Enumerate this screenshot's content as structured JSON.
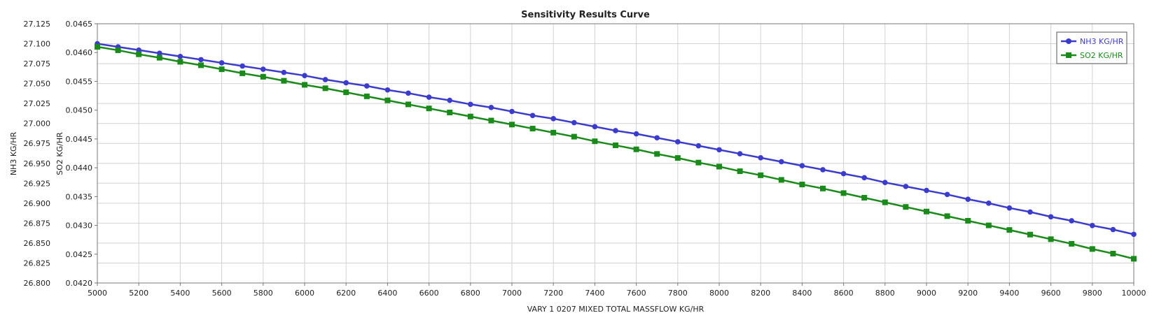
{
  "chart_data": {
    "type": "line",
    "title": "Sensitivity Results Curve",
    "xlabel": "VARY   1 0207 MIXED TOTAL MASSFLOW KG/HR",
    "xlim": [
      5000,
      10000
    ],
    "xticks": [
      5000,
      5200,
      5400,
      5600,
      5800,
      6000,
      6200,
      6400,
      6600,
      6800,
      7000,
      7200,
      7400,
      7600,
      7800,
      8000,
      8200,
      8400,
      8600,
      8800,
      9000,
      9200,
      9400,
      9600,
      9800,
      10000
    ],
    "x": [
      5000,
      5100,
      5200,
      5300,
      5400,
      5500,
      5600,
      5700,
      5800,
      5900,
      6000,
      6100,
      6200,
      6300,
      6400,
      6500,
      6600,
      6700,
      6800,
      6900,
      7000,
      7100,
      7200,
      7300,
      7400,
      7500,
      7600,
      7700,
      7800,
      7900,
      8000,
      8100,
      8200,
      8300,
      8400,
      8500,
      8600,
      8700,
      8800,
      8900,
      9000,
      9100,
      9200,
      9300,
      9400,
      9500,
      9600,
      9700,
      9800,
      9900,
      10000
    ],
    "grid": true,
    "legend_position": "top-right",
    "y_axes": [
      {
        "label": "NH3 KG/HR",
        "ylim": [
          26.8,
          27.125
        ],
        "ticks": [
          "27.125",
          "27.100",
          "27.075",
          "27.050",
          "27.025",
          "27.000",
          "26.975",
          "26.950",
          "26.925",
          "26.900",
          "26.875",
          "26.850",
          "26.825",
          "26.800"
        ]
      },
      {
        "label": "SO2 KG/HR",
        "ylim": [
          0.042,
          0.0465
        ],
        "ticks": [
          "0.0465",
          "0.0460",
          "0.0455",
          "0.0450",
          "0.0445",
          "0.0440",
          "0.0435",
          "0.0430",
          "0.0425",
          "0.0420"
        ]
      }
    ],
    "series": [
      {
        "name": "NH3 KG/HR",
        "axis": 0,
        "color": "#3c3ccc",
        "marker": "circle",
        "values": [
          27.1,
          27.096,
          27.092,
          27.088,
          27.084,
          27.08,
          27.076,
          27.072,
          27.068,
          27.064,
          27.06,
          27.055,
          27.051,
          27.047,
          27.042,
          27.038,
          27.033,
          27.029,
          27.024,
          27.02,
          27.015,
          27.01,
          27.006,
          27.001,
          26.996,
          26.991,
          26.987,
          26.982,
          26.977,
          26.972,
          26.967,
          26.962,
          26.957,
          26.952,
          26.947,
          26.942,
          26.937,
          26.932,
          26.926,
          26.921,
          26.916,
          26.911,
          26.905,
          26.9,
          26.894,
          26.889,
          26.883,
          26.878,
          26.872,
          26.867,
          26.861
        ]
      },
      {
        "name": "SO2 KG/HR",
        "axis": 1,
        "color": "#1a8a1a",
        "marker": "square",
        "values": [
          0.0461,
          0.04604,
          0.04597,
          0.04591,
          0.04584,
          0.04578,
          0.04571,
          0.04564,
          0.04558,
          0.04551,
          0.04544,
          0.04538,
          0.04531,
          0.04524,
          0.04517,
          0.0451,
          0.04503,
          0.04496,
          0.04489,
          0.04482,
          0.04475,
          0.04468,
          0.04461,
          0.04454,
          0.04446,
          0.04439,
          0.04432,
          0.04424,
          0.04417,
          0.04409,
          0.04402,
          0.04394,
          0.04387,
          0.04379,
          0.04371,
          0.04364,
          0.04356,
          0.04348,
          0.0434,
          0.04332,
          0.04324,
          0.04316,
          0.04308,
          0.043,
          0.04292,
          0.04284,
          0.04276,
          0.04268,
          0.04259,
          0.04251,
          0.04242
        ]
      }
    ]
  }
}
